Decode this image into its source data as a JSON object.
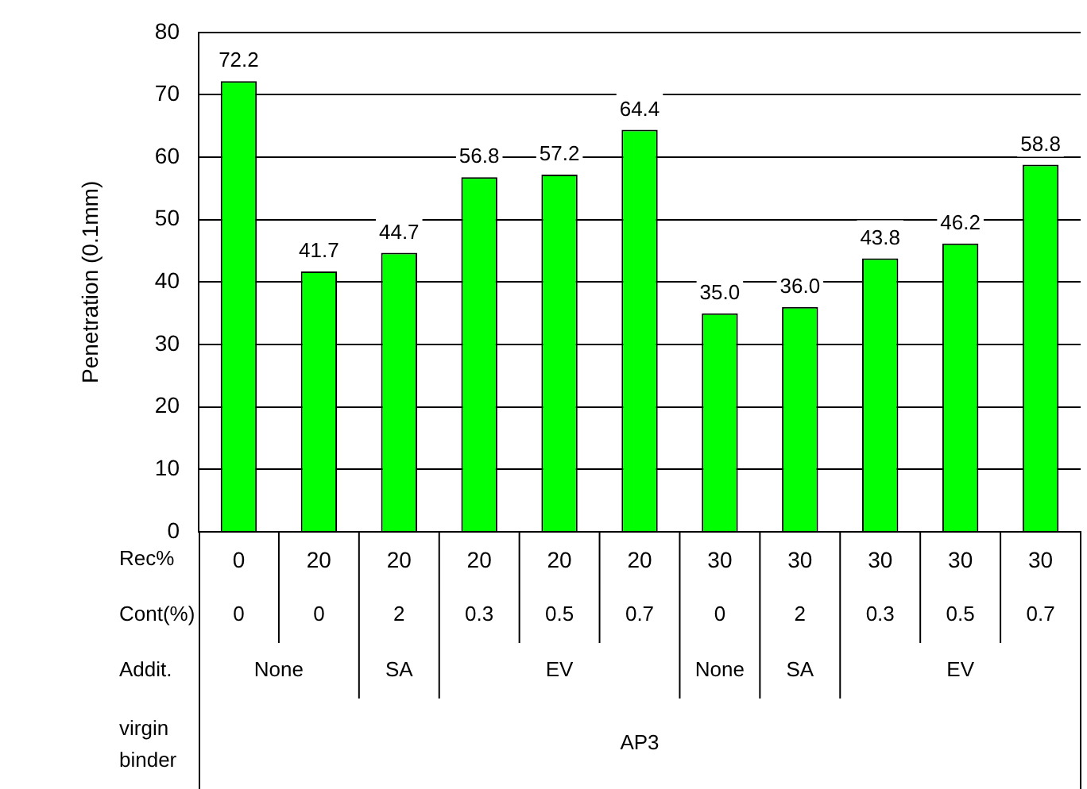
{
  "chart_data": {
    "type": "bar",
    "ylabel": "Penetration (0.1mm)",
    "categories": [
      "0",
      "20",
      "20",
      "20",
      "20",
      "20",
      "30",
      "30",
      "30",
      "30",
      "30"
    ],
    "values": [
      72.2,
      41.7,
      44.7,
      56.8,
      57.2,
      64.4,
      35.0,
      36.0,
      43.8,
      46.2,
      58.8
    ],
    "value_labels": [
      "72.2",
      "41.7",
      "44.7",
      "56.8",
      "57.2",
      "64.4",
      "35.0",
      "36.0",
      "43.8",
      "46.2",
      "58.8"
    ],
    "color": "#00ff00",
    "ylim": [
      0,
      80
    ],
    "yticks": [
      0,
      10,
      20,
      30,
      40,
      50,
      60,
      70,
      80
    ],
    "grid": "y",
    "legend": false,
    "annotations": [
      "Rec%",
      "Cont(%)",
      "Addit.",
      "virgin binder",
      "0",
      "0",
      "2",
      "0.3",
      "0.5",
      "0.7",
      "0",
      "2",
      "0.3",
      "0.5",
      "0.7",
      "None",
      null,
      "SA",
      "EV",
      null,
      null,
      "None",
      "SA",
      "EV",
      null,
      null,
      "AP3",
      null,
      null,
      null,
      null,
      null,
      null,
      null,
      null,
      null,
      null
    ]
  }
}
